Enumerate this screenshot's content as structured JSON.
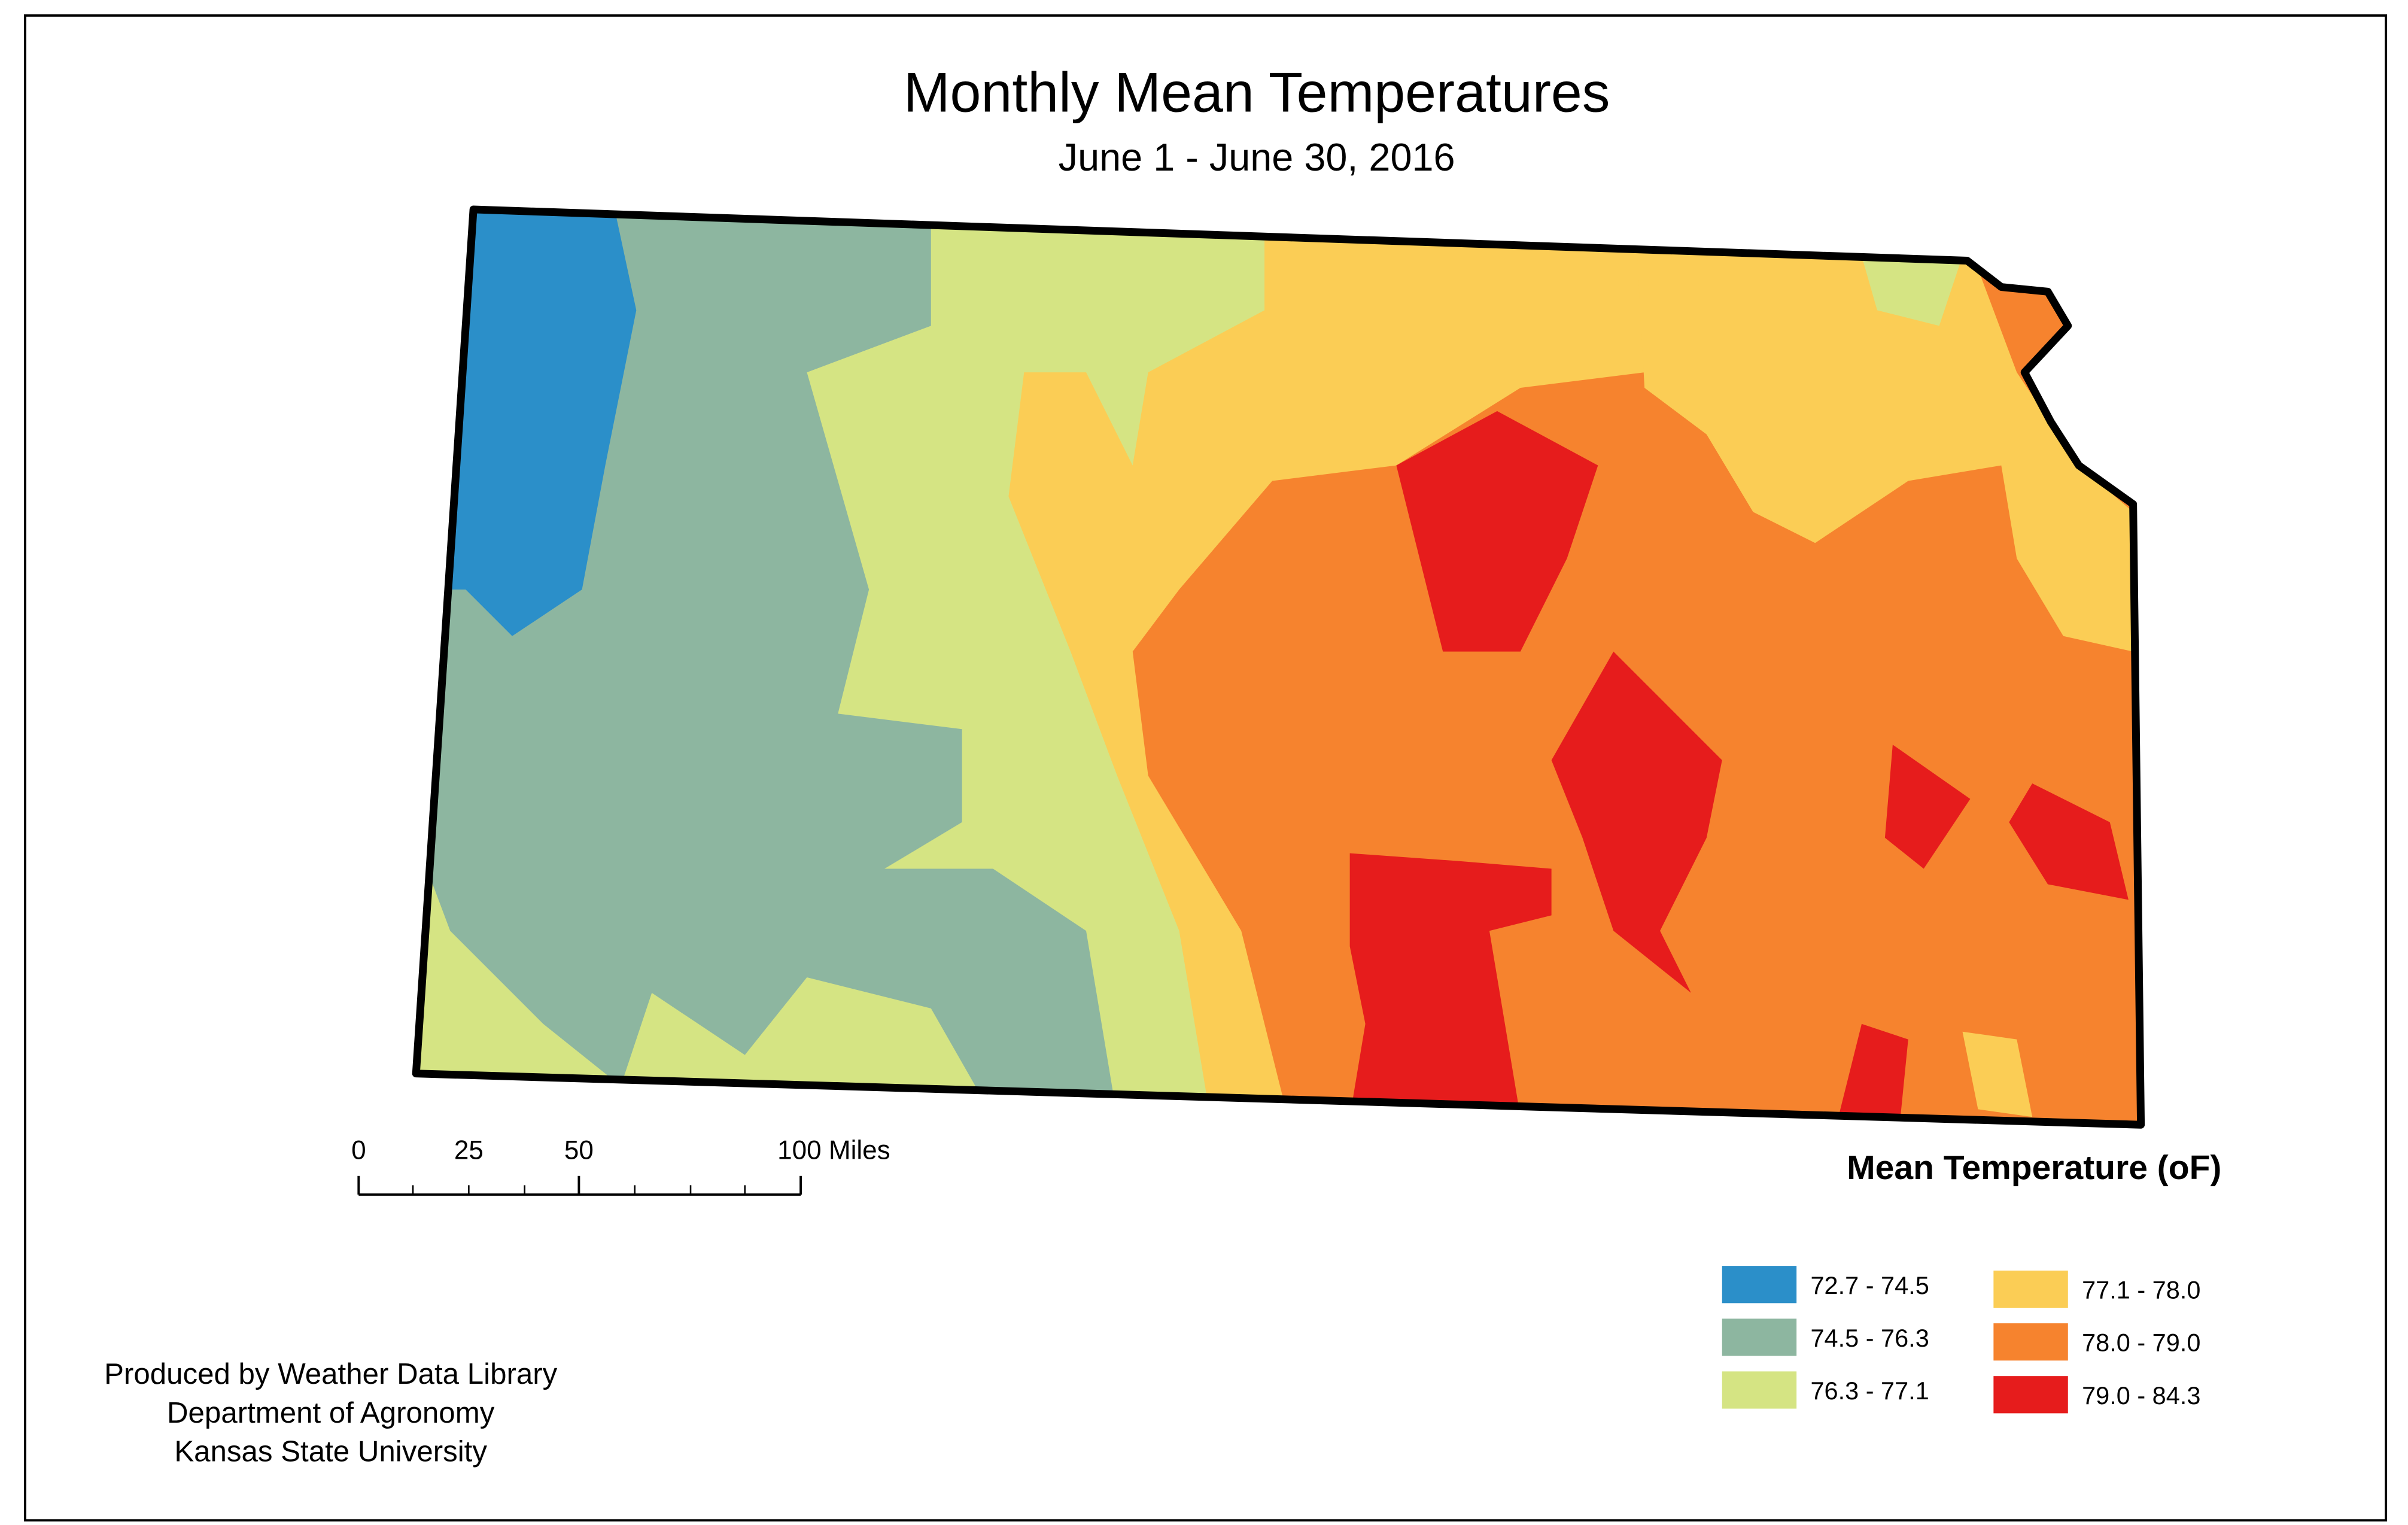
{
  "header": {
    "title": "Monthly Mean Temperatures",
    "subtitle": "June 1 - June 30, 2016"
  },
  "scale_bar": {
    "labels": [
      "0",
      "25",
      "50",
      "100 Miles"
    ]
  },
  "legend": {
    "title": "Mean Temperature (oF)",
    "items": [
      {
        "label": "72.7 - 74.5",
        "color": "#2b8fc9"
      },
      {
        "label": "74.5 - 76.3",
        "color": "#8db6a0"
      },
      {
        "label": "76.3 - 77.1",
        "color": "#d5e483"
      },
      {
        "label": "77.1 - 78.0",
        "color": "#fbcd55"
      },
      {
        "label": "78.0 - 79.0",
        "color": "#f6832e"
      },
      {
        "label": "79.0 - 84.3",
        "color": "#e61c1c"
      }
    ]
  },
  "credits": [
    "Produced by Weather Data Library",
    "Department of Agronomy",
    "Kansas State University"
  ]
}
